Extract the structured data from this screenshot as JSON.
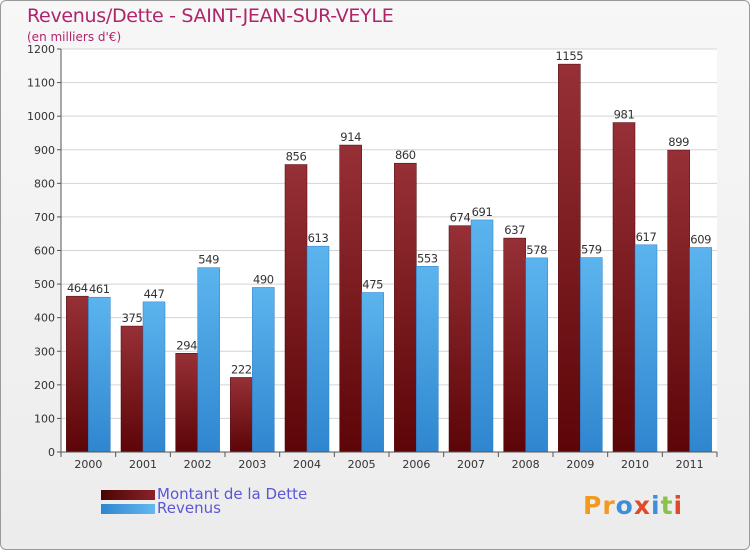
{
  "header": {
    "title": "Revenus/Dette - SAINT-JEAN-SUR-VEYLE",
    "subtitle": "(en milliers d'€)"
  },
  "legend": {
    "items": [
      {
        "label": "Montant de la Dette",
        "color": "#7a1416"
      },
      {
        "label": "Revenus",
        "color": "#4da6e8"
      }
    ]
  },
  "logo": {
    "text": "Proxiti",
    "colors": [
      "#f39a1e",
      "#f39a1e",
      "#3f8fd8",
      "#e04a2a",
      "#3f8fd8",
      "#8bc34a",
      "#e04a2a"
    ]
  },
  "chart_data": {
    "type": "bar",
    "categories": [
      "2000",
      "2001",
      "2002",
      "2003",
      "2004",
      "2005",
      "2006",
      "2007",
      "2008",
      "2009",
      "2010",
      "2011"
    ],
    "series": [
      {
        "name": "Montant de la Dette",
        "color": "#7a1416",
        "values": [
          464,
          375,
          294,
          222,
          856,
          914,
          860,
          674,
          637,
          1155,
          981,
          899
        ]
      },
      {
        "name": "Revenus",
        "color": "#4da6e8",
        "values": [
          461,
          447,
          549,
          490,
          613,
          475,
          553,
          691,
          578,
          579,
          617,
          609
        ]
      }
    ],
    "yticks": [
      "0",
      "100",
      "200",
      "300",
      "400",
      "500",
      "600",
      "700",
      "800",
      "900",
      "1000",
      "1100",
      "1200"
    ],
    "ylim": [
      0,
      1200
    ],
    "grid": true,
    "legend_position": "bottom-left"
  }
}
